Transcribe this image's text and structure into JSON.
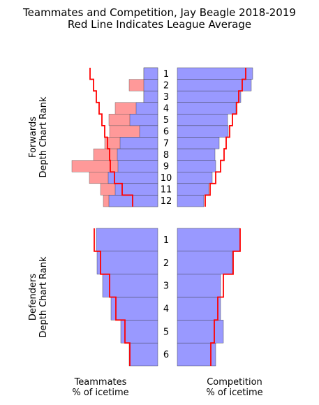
{
  "chart_data": {
    "type": "bar",
    "title": "Teammates and Competition, Jay Beagle 2018-2019",
    "subtitle": "Red Line Indicates League Average",
    "colors": {
      "base": "#9999ff",
      "diff": "#ff9999",
      "league": "#ff0000"
    },
    "panels": {
      "forwards": {
        "ylabel": [
          "Forwards",
          "Depth Chart Rank"
        ],
        "ranks": [
          "1",
          "2",
          "3",
          "4",
          "5",
          "6",
          "7",
          "8",
          "9",
          "10",
          "11",
          "12"
        ],
        "teammates_blue": [
          20,
          20,
          20,
          31,
          40,
          26,
          54,
          58,
          57,
          71,
          61,
          70
        ],
        "teammates_red": [
          20,
          41,
          20,
          61,
          70,
          69,
          76,
          92,
          123,
          98,
          82,
          78
        ],
        "teammates_league": [
          97,
          92,
          88,
          84,
          80,
          76,
          72,
          69,
          68,
          62,
          51,
          36
        ],
        "competition_blue": [
          108,
          106,
          91,
          84,
          72,
          73,
          60,
          54,
          55,
          50,
          45,
          38
        ],
        "competition_league": [
          98,
          93,
          88,
          85,
          79,
          75,
          70,
          67,
          62,
          55,
          47,
          40
        ]
      },
      "defenders": {
        "ylabel": [
          "Defenders",
          "Depth Chart Rank"
        ],
        "ranks": [
          "1",
          "2",
          "3",
          "4",
          "5",
          "6"
        ],
        "teammates_blue": [
          88,
          87,
          79,
          67,
          53,
          41
        ],
        "teammates_league": [
          91,
          82,
          69,
          60,
          47,
          40
        ],
        "competition_blue": [
          90,
          79,
          62,
          62,
          66,
          55
        ],
        "competition_league": [
          90,
          80,
          66,
          58,
          53,
          48
        ]
      }
    },
    "xlabels": {
      "teammates": [
        "Teammates",
        "% of icetime"
      ],
      "competition": [
        "Competition",
        "% of icetime"
      ]
    }
  }
}
